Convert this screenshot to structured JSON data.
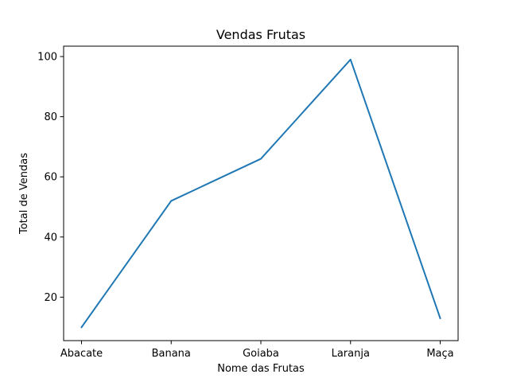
{
  "chart_data": {
    "type": "line",
    "title": "Vendas Frutas",
    "xlabel": "Nome das Frutas",
    "ylabel": "Total de Vendas",
    "categories": [
      "Abacate",
      "Banana",
      "Goiaba",
      "Laranja",
      "Maça"
    ],
    "series": [
      {
        "values": [
          10,
          52,
          66,
          99,
          13
        ],
        "color": "#1f77b4"
      }
    ],
    "ylim": [
      5.55,
      103.45
    ],
    "yticks": [
      20,
      40,
      60,
      80,
      100
    ],
    "grid": false,
    "legend": false
  }
}
